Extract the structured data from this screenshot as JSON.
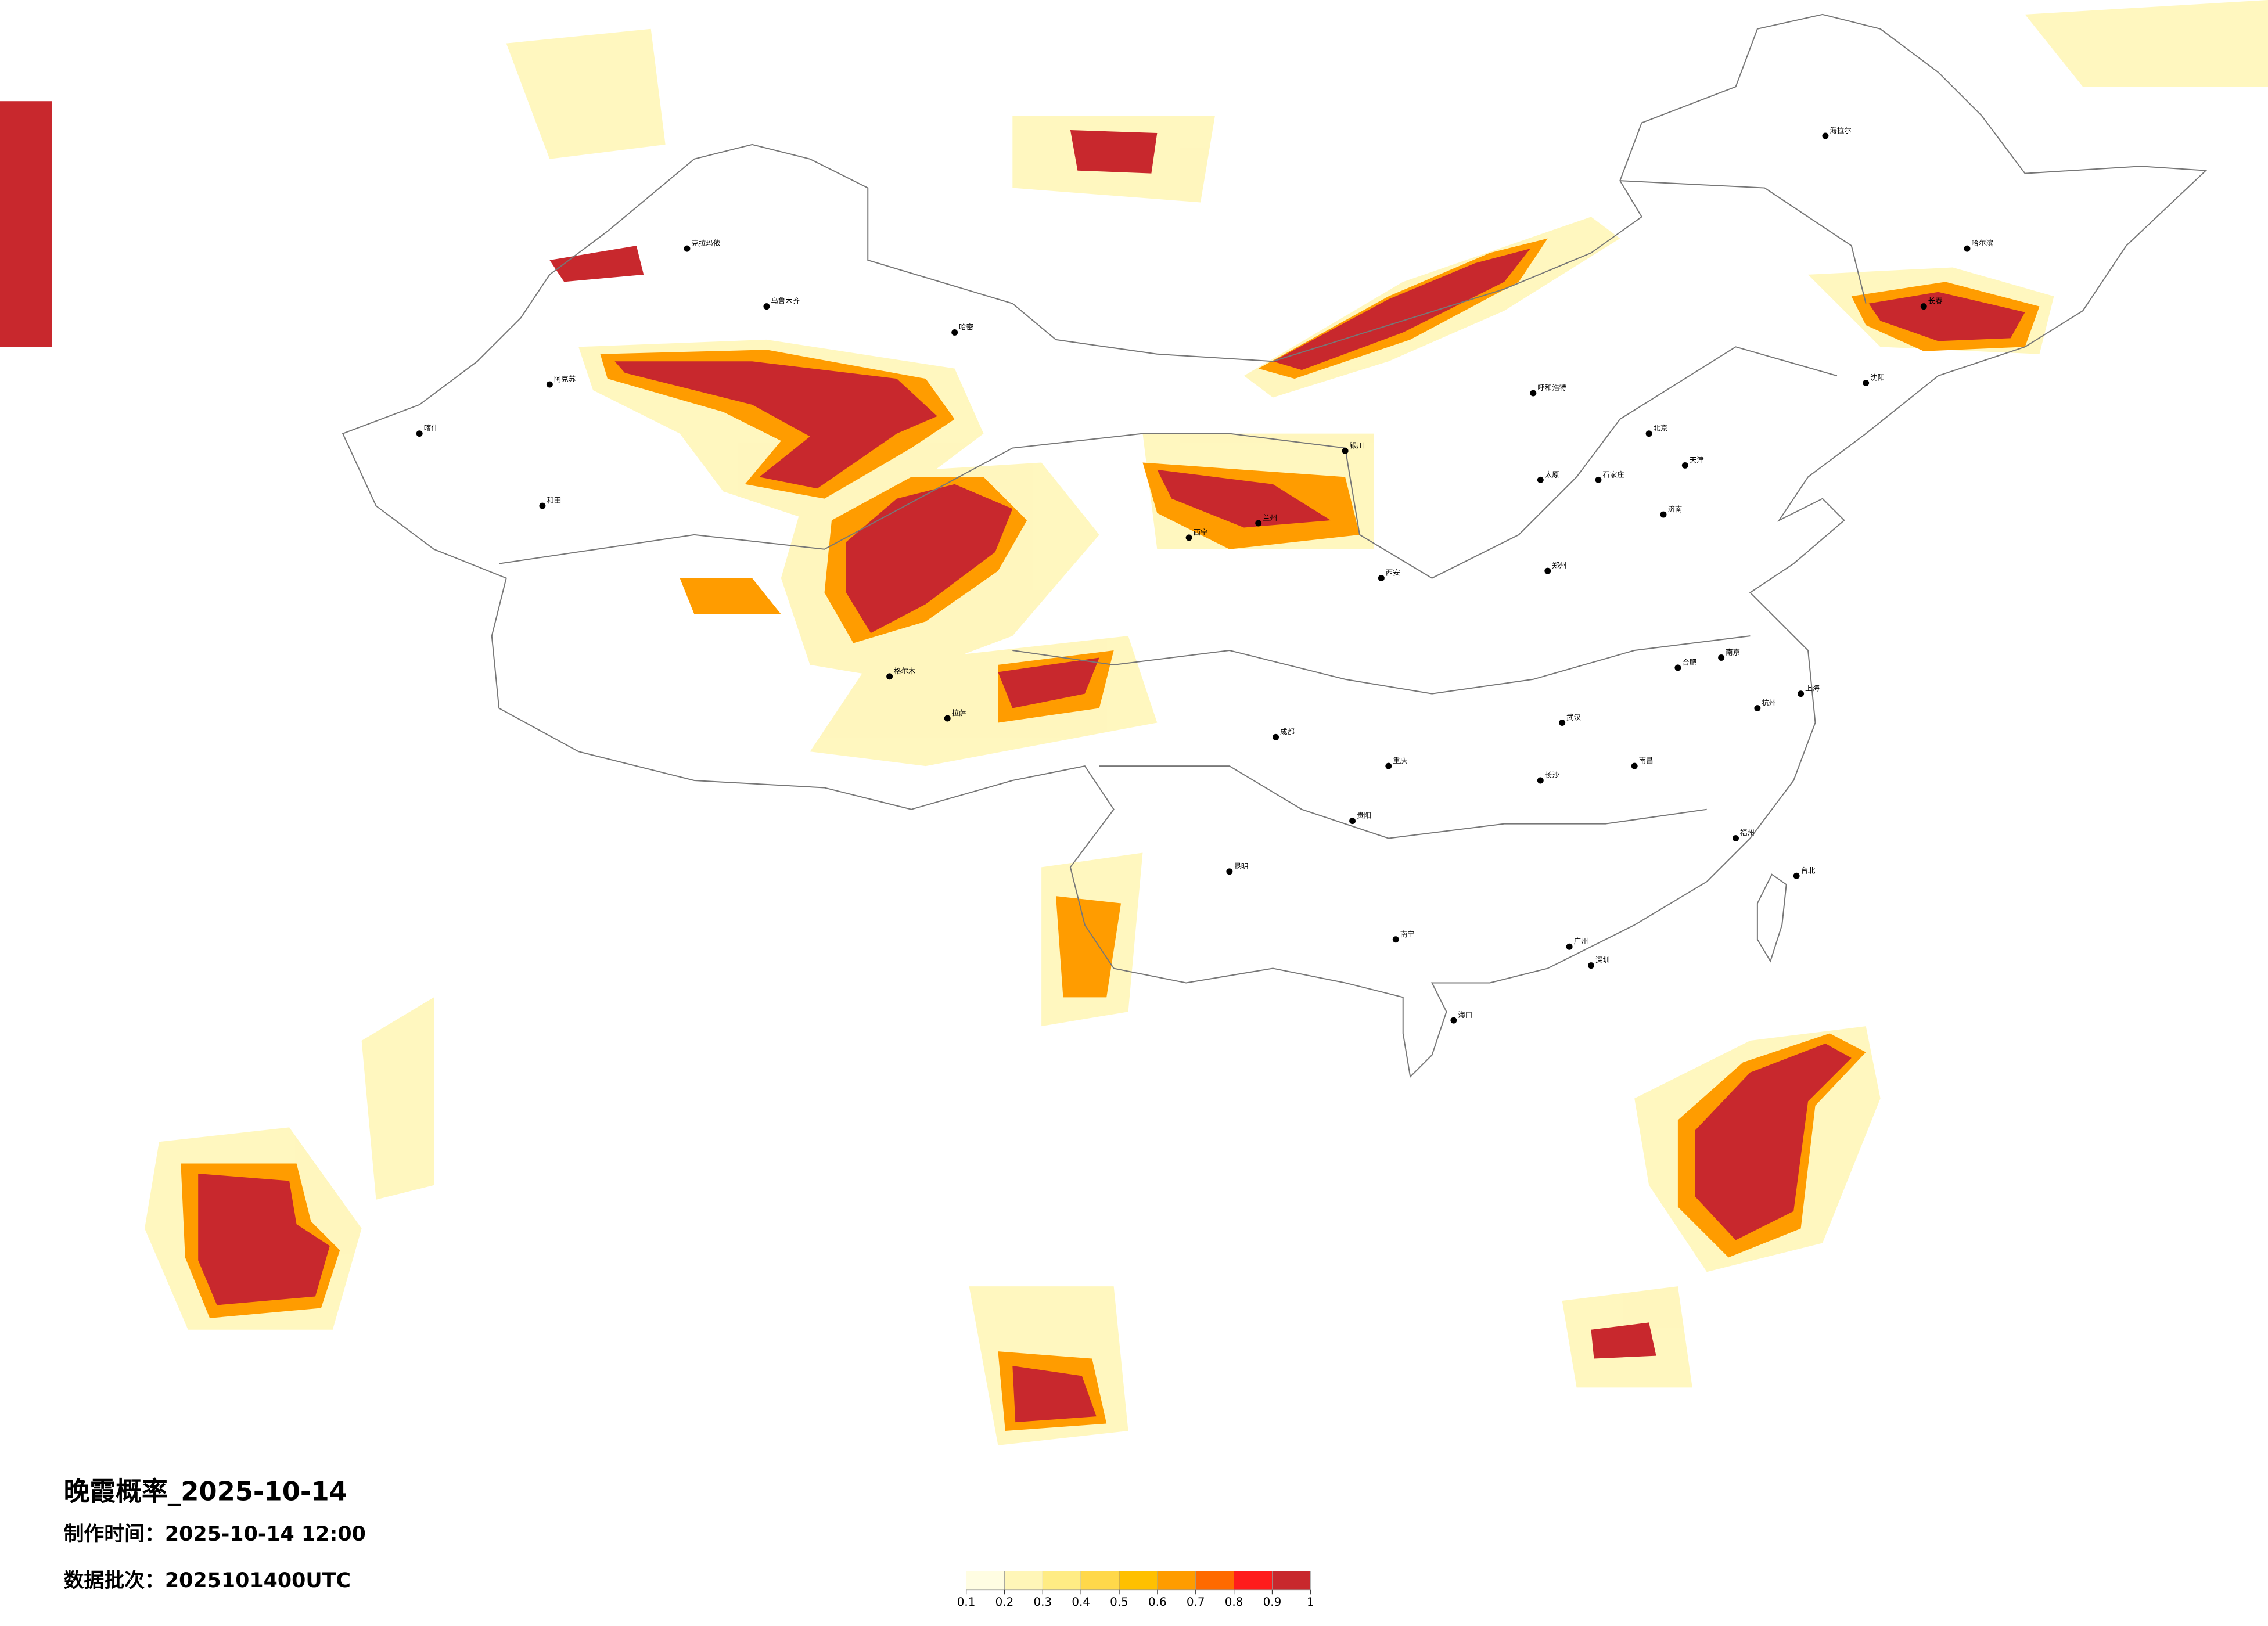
{
  "header": {
    "title": "晚霞概率_2025-10-14",
    "production_time": "制作时间：2025-10-14 12:00",
    "data_batch": "数据批次：2025101400UTC"
  },
  "colorbar": {
    "ticks": [
      0.1,
      0.2,
      0.3,
      0.4,
      0.5,
      0.6,
      0.7,
      0.8,
      0.9,
      1
    ],
    "colors": [
      "#fffde2",
      "#fff6b8",
      "#ffec84",
      "#ffd84a",
      "#ffc000",
      "#ff9c00",
      "#ff6a00",
      "#ff1c1c",
      "#c8282d"
    ]
  },
  "cities": [
    "北京",
    "天津",
    "上海",
    "广州",
    "深圳",
    "重庆",
    "成都",
    "武汉",
    "西安",
    "郑州",
    "南京",
    "杭州",
    "长沙",
    "昆明",
    "南宁",
    "贵阳",
    "兰州",
    "西宁",
    "拉萨",
    "乌鲁木齐",
    "哈尔滨",
    "长春",
    "沈阳",
    "呼和浩特",
    "银川",
    "太原",
    "石家庄",
    "济南",
    "合肥",
    "南昌",
    "福州",
    "海口",
    "台北",
    "喀什",
    "和田",
    "阿克苏",
    "克拉玛依",
    "哈密",
    "格尔木",
    "海拉尔"
  ]
}
